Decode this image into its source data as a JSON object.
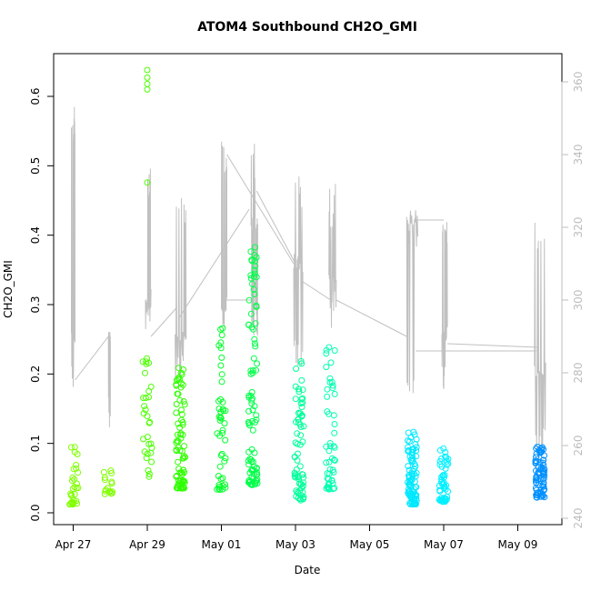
{
  "chart_data": {
    "type": "scatter",
    "title": "ATOM4 Southbound CH2O_GMI",
    "xlabel": "Date",
    "ylabel": "CH2O_GMI",
    "x_tick_labels": [
      "Apr 27",
      "Apr 29",
      "May 01",
      "May 03",
      "May 05",
      "May 07",
      "May 09"
    ],
    "x_tick_days": [
      0,
      2,
      4,
      6,
      8,
      10,
      12
    ],
    "xlim_days": [
      -0.5,
      13.0
    ],
    "ylim": [
      0.0,
      0.65
    ],
    "y_ticks": [
      0.0,
      0.1,
      0.2,
      0.3,
      0.4,
      0.5,
      0.6
    ],
    "y_tick_labels": [
      "0.0",
      "0.1",
      "0.2",
      "0.3",
      "0.4",
      "0.5",
      "0.6"
    ],
    "y2_ticks": [
      240,
      260,
      280,
      300,
      320,
      340,
      360
    ],
    "y2_tick_labels": [
      "240",
      "260",
      "280",
      "300",
      "320",
      "340",
      "360"
    ],
    "y2lim": [
      237.5,
      362.5
    ],
    "grid": false,
    "series": [
      {
        "kind": "points",
        "marker": "open-circle",
        "groups": [
          {
            "day": 0.02,
            "color": "#80ff00",
            "min": 0.012,
            "max": 0.1,
            "n": 30
          },
          {
            "day": 0.95,
            "color": "#80ff00",
            "min": 0.025,
            "max": 0.068,
            "n": 16
          },
          {
            "day": 2.0,
            "color": "#4cff00",
            "min": 0.037,
            "max": 0.228,
            "n": 30,
            "outliers": [
              0.476,
              0.61,
              0.618,
              0.627,
              0.638
            ]
          },
          {
            "day": 2.9,
            "color": "#30ff00",
            "min": 0.035,
            "max": 0.215,
            "n": 80
          },
          {
            "day": 4.0,
            "color": "#00ff28",
            "min": 0.033,
            "max": 0.278,
            "n": 45
          },
          {
            "day": 4.85,
            "color": "#00ff48",
            "min": 0.04,
            "max": 0.385,
            "n": 90
          },
          {
            "day": 6.1,
            "color": "#00ff9a",
            "min": 0.017,
            "max": 0.22,
            "n": 70
          },
          {
            "day": 6.95,
            "color": "#00ffb0",
            "min": 0.034,
            "max": 0.245,
            "n": 50
          },
          {
            "day": 9.15,
            "color": "#00e8ff",
            "min": 0.012,
            "max": 0.117,
            "n": 90
          },
          {
            "day": 10.0,
            "color": "#00f0ff",
            "min": 0.016,
            "max": 0.095,
            "n": 50
          },
          {
            "day": 12.6,
            "color": "#0090ff",
            "min": 0.022,
            "max": 0.095,
            "n": 75
          }
        ]
      },
      {
        "kind": "line",
        "axis": "right",
        "color": "#c0c0c0",
        "note": "grey trace on right axis",
        "bursts": [
          {
            "day0": -0.05,
            "day1": 0.05,
            "base": 290,
            "lo": 275,
            "hi": 355
          },
          {
            "day0": 0.95,
            "day1": 1.0,
            "base": 290,
            "lo": 265,
            "hi": 290
          },
          {
            "day0": 1.95,
            "day1": 2.1,
            "base": 300,
            "lo": 290,
            "hi": 340
          },
          {
            "day0": 2.75,
            "day1": 3.05,
            "base": 290,
            "lo": 275,
            "hi": 332
          },
          {
            "day0": 4.0,
            "day1": 4.15,
            "base": 300,
            "lo": 290,
            "hi": 345
          },
          {
            "day0": 4.8,
            "day1": 4.98,
            "base": 320,
            "lo": 290,
            "hi": 345
          },
          {
            "day0": 5.95,
            "day1": 6.2,
            "base": 310,
            "lo": 280,
            "hi": 335
          },
          {
            "day0": 6.9,
            "day1": 7.1,
            "base": 305,
            "lo": 290,
            "hi": 332
          },
          {
            "day0": 9.0,
            "day1": 9.3,
            "base": 320,
            "lo": 270,
            "hi": 325
          },
          {
            "day0": 9.95,
            "day1": 10.1,
            "base": 290,
            "lo": 275,
            "hi": 322
          },
          {
            "day0": 12.45,
            "day1": 12.75,
            "base": 280,
            "lo": 255,
            "hi": 322
          }
        ],
        "connectors": [
          [
            0.05,
            278,
            0.95,
            290
          ],
          [
            1.0,
            290,
            1.0,
            268
          ],
          [
            2.1,
            290,
            2.8,
            298
          ],
          [
            2.85,
            295,
            4.75,
            325
          ],
          [
            4.15,
            300,
            4.85,
            300
          ],
          [
            4.15,
            340,
            5.95,
            310
          ],
          [
            4.95,
            330,
            6.0,
            310
          ],
          [
            6.2,
            305,
            6.95,
            300
          ],
          [
            7.1,
            300,
            9.0,
            290
          ],
          [
            9.3,
            322,
            10.0,
            322
          ],
          [
            9.25,
            286,
            12.5,
            286
          ],
          [
            10.1,
            288,
            12.55,
            287
          ]
        ]
      }
    ]
  }
}
